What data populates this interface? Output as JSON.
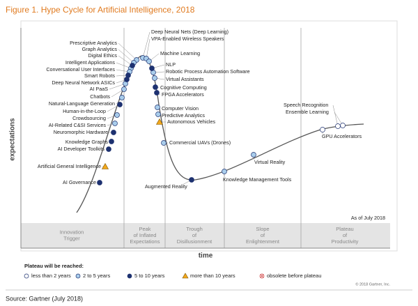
{
  "title": "Figure 1. Hype Cycle for Artificial Intelligence, 2018",
  "y_axis_label": "expectations",
  "x_axis_label": "time",
  "as_of": "As of July 2018",
  "phases": [
    "Innovation Trigger",
    "Peak of Inflated Expectations",
    "Trough of Disillusionment",
    "Slope of Enlightenment",
    "Plateau of Productivity"
  ],
  "legend_title": "Plateau will be reached:",
  "legend": [
    {
      "label": "less than 2 years",
      "technologies": [
        "GPU Accelerators",
        "Speech Recognition",
        "Ensemble Learning"
      ]
    },
    {
      "label": "2 to 5 years",
      "technologies": [
        "Deep Neural Nets (Deep Learning)",
        "VPA-Enabled Wireless Speakers",
        "Machine Learning",
        "Robotic Process Automation Software",
        "Virtual Assistants",
        "Computer Vision",
        "Predictive Analytics",
        "Commercial UAVs (Drones)",
        "Knowledge Management Tools",
        "Virtual Reality",
        "Chatbots",
        "Natural-Language Generation",
        "Crowdsourcing",
        "AI-Related C&SI Services",
        "Prescriptive Analytics",
        "Graph Analytics",
        "Intelligent Applications",
        "Conversational User Interfaces",
        "AI PaaS"
      ]
    },
    {
      "label": "5 to 10 years",
      "technologies": [
        "Digital Ethics",
        "Smart Robots",
        "Deep Neural Network ASICs",
        "NLP",
        "Cognitive Computing",
        "FPGA Accelerators",
        "Human-in-the-Loop",
        "Neuromorphic Hardware",
        "Knowledge Graphs",
        "AI Developer Toolkits",
        "AI Governance",
        "Augmented Reality"
      ]
    },
    {
      "label": "more than 10 years",
      "technologies": [
        "Artificial General Intelligence",
        "Autonomous Vehicles"
      ]
    },
    {
      "label": "obsolete before plateau",
      "technologies": []
    }
  ],
  "copyright": "© 2018 Gartner, Inc.",
  "source": "Source: Gartner (July 2018)"
}
